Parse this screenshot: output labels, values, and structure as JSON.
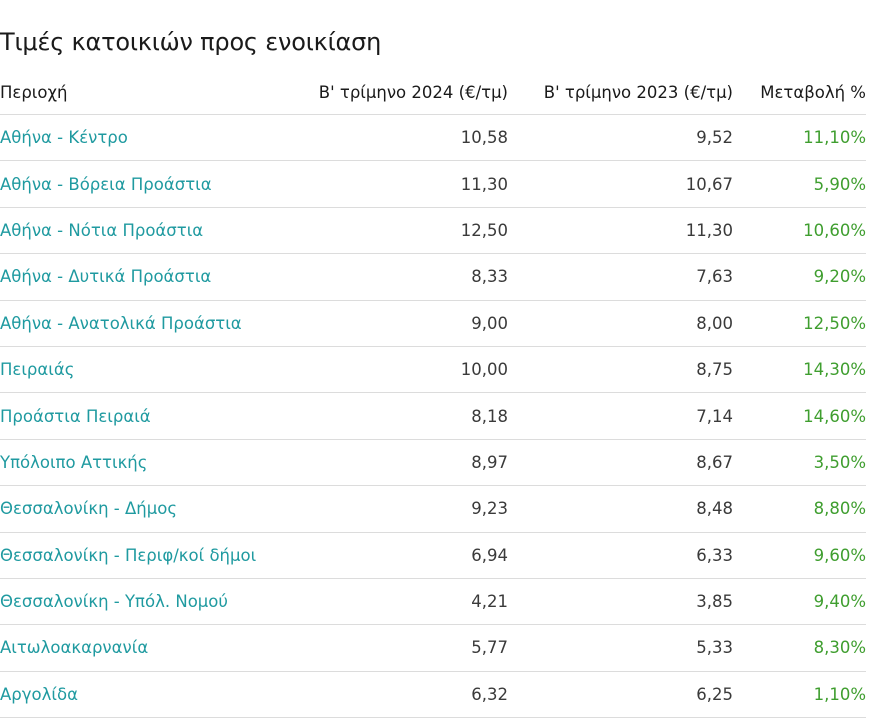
{
  "title": "Τιμές κατοικιών προς ενοικίαση",
  "columns": {
    "region": "Περιοχή",
    "q2_2024": "Β' τρίμηνο 2024 (€/τμ)",
    "q2_2023": "Β' τρίμηνο 2023 (€/τμ)",
    "change": "Μεταβολή %"
  },
  "rows": [
    {
      "region": "Αθήνα - Κέντρο",
      "q2_2024": "10,58",
      "q2_2023": "9,52",
      "change": "11,10%"
    },
    {
      "region": "Αθήνα - Βόρεια Προάστια",
      "q2_2024": "11,30",
      "q2_2023": "10,67",
      "change": "5,90%"
    },
    {
      "region": "Αθήνα - Νότια Προάστια",
      "q2_2024": "12,50",
      "q2_2023": "11,30",
      "change": "10,60%"
    },
    {
      "region": "Αθήνα - Δυτικά Προάστια",
      "q2_2024": "8,33",
      "q2_2023": "7,63",
      "change": "9,20%"
    },
    {
      "region": "Αθήνα - Ανατολικά Προάστια",
      "q2_2024": "9,00",
      "q2_2023": "8,00",
      "change": "12,50%"
    },
    {
      "region": "Πειραιάς",
      "q2_2024": "10,00",
      "q2_2023": "8,75",
      "change": "14,30%"
    },
    {
      "region": "Προάστια Πειραιά",
      "q2_2024": "8,18",
      "q2_2023": "7,14",
      "change": "14,60%"
    },
    {
      "region": "Υπόλοιπο Αττικής",
      "q2_2024": "8,97",
      "q2_2023": "8,67",
      "change": "3,50%"
    },
    {
      "region": "Θεσσαλονίκη - Δήμος",
      "q2_2024": "9,23",
      "q2_2023": "8,48",
      "change": "8,80%"
    },
    {
      "region": "Θεσσαλονίκη - Περιφ/κοί δήμοι",
      "q2_2024": "6,94",
      "q2_2023": "6,33",
      "change": "9,60%"
    },
    {
      "region": "Θεσσαλονίκη - Υπόλ. Νομού",
      "q2_2024": "4,21",
      "q2_2023": "3,85",
      "change": "9,40%"
    },
    {
      "region": "Αιτωλοακαρνανία",
      "q2_2024": "5,77",
      "q2_2023": "5,33",
      "change": "8,30%"
    },
    {
      "region": "Αργολίδα",
      "q2_2024": "6,32",
      "q2_2023": "6,25",
      "change": "1,10%"
    }
  ]
}
